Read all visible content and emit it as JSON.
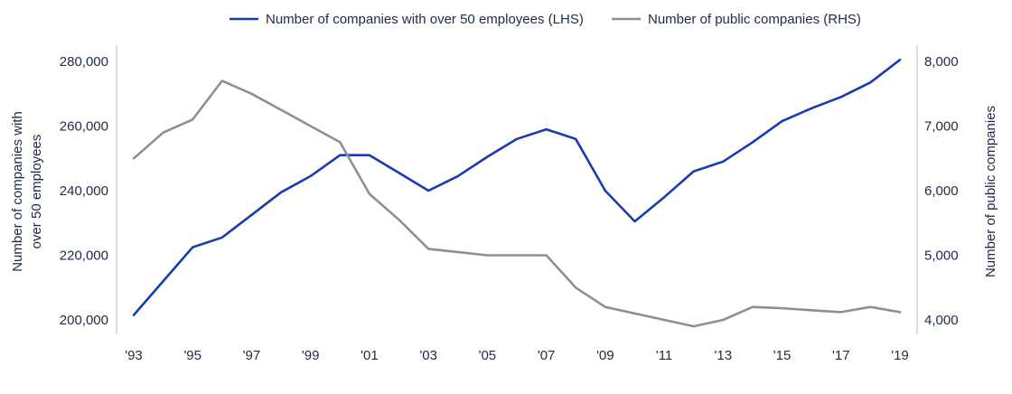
{
  "chart_data": {
    "type": "line",
    "title": "",
    "xlabel": "",
    "ylabel": "Number of companies with over 50 employees",
    "ylabel_lines": [
      "Number of companies with",
      "over 50 employees"
    ],
    "y2label": "Number of public companies",
    "x": [
      1993,
      1994,
      1995,
      1996,
      1997,
      1998,
      1999,
      2000,
      2001,
      2002,
      2003,
      2004,
      2005,
      2006,
      2007,
      2008,
      2009,
      2010,
      2011,
      2012,
      2013,
      2014,
      2015,
      2016,
      2017,
      2018,
      2019
    ],
    "x_ticks": [
      "'93",
      "'95",
      "'97",
      "'99",
      "'01",
      "'03",
      "'05",
      "'07",
      "'09",
      "'11",
      "'13",
      "'15",
      "'17",
      "'19"
    ],
    "ylim": [
      200000,
      280000
    ],
    "y_ticks": [
      "200,000",
      "220,000",
      "240,000",
      "260,000",
      "280,000"
    ],
    "y2lim": [
      4000,
      8000
    ],
    "y2_ticks": [
      "4,000",
      "5,000",
      "6,000",
      "7,000",
      "8,000"
    ],
    "legend_position": "top-center",
    "grid": false,
    "series": [
      {
        "name": "Number of companies with over 50 employees (LHS)",
        "axis": "left",
        "color": "#1a3bb0",
        "values": [
          201500,
          212000,
          222500,
          225500,
          232500,
          239500,
          244500,
          251000,
          251000,
          245500,
          240000,
          244500,
          250500,
          256000,
          259000,
          256000,
          240000,
          230500,
          238000,
          246000,
          249000,
          255000,
          261500,
          265500,
          269000,
          273500,
          280500
        ]
      },
      {
        "name": "Number of public companies (RHS)",
        "axis": "right",
        "color": "#8c9096",
        "values": [
          6500,
          6900,
          7100,
          7700,
          7500,
          7250,
          7000,
          6750,
          5950,
          5550,
          5100,
          5050,
          5000,
          5000,
          5000,
          4500,
          4200,
          4100,
          4000,
          3900,
          4000,
          4200,
          4180,
          4150,
          4120,
          4200,
          4120
        ]
      }
    ]
  }
}
